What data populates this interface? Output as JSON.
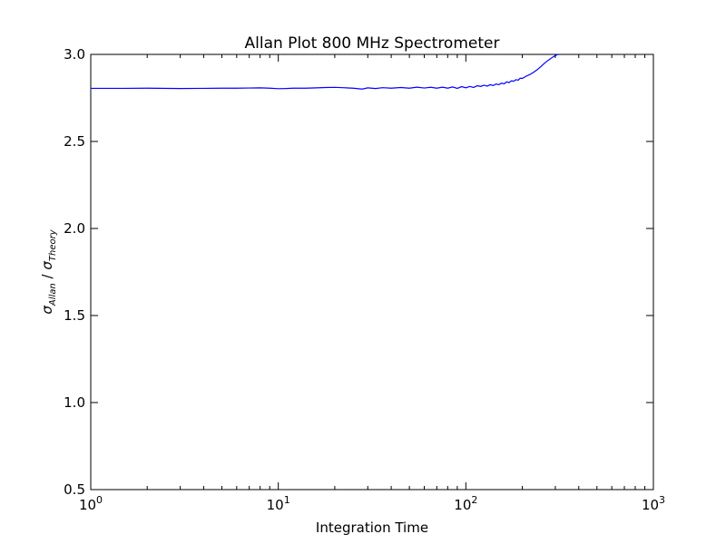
{
  "chart_data": {
    "type": "line",
    "title": "Allan Plot 800 MHz Spectrometer",
    "xlabel": "Integration Time",
    "ylabel": "σ_Allan / σ_Theory",
    "ylabel_main": "σ",
    "ylabel_num_sub": "Allan",
    "ylabel_slash": " / ",
    "ylabel_den_sub": "Theory",
    "xscale": "log",
    "xlim": [
      1,
      1000
    ],
    "ylim": [
      0.5,
      3.0
    ],
    "grid": false,
    "x_ticks": [
      {
        "value": 1,
        "base": "10",
        "exp": "0"
      },
      {
        "value": 10,
        "base": "10",
        "exp": "1"
      },
      {
        "value": 100,
        "base": "10",
        "exp": "2"
      },
      {
        "value": 1000,
        "base": "10",
        "exp": "3"
      }
    ],
    "y_ticks": [
      {
        "value": 0.5,
        "label": "0.5"
      },
      {
        "value": 1.0,
        "label": "1.0"
      },
      {
        "value": 1.5,
        "label": "1.5"
      },
      {
        "value": 2.0,
        "label": "2.0"
      },
      {
        "value": 2.5,
        "label": "2.5"
      },
      {
        "value": 3.0,
        "label": "3.0"
      }
    ],
    "series": [
      {
        "color": "#0000ff",
        "x": [
          1,
          1.5,
          2,
          3,
          4,
          5,
          6,
          7,
          8,
          9,
          10,
          11,
          12,
          14,
          16,
          18,
          20,
          22,
          25,
          28,
          30,
          33,
          36,
          40,
          45,
          50,
          55,
          60,
          65,
          70,
          75,
          80,
          85,
          90,
          95,
          100,
          105,
          110,
          115,
          120,
          125,
          130,
          135,
          140,
          145,
          150,
          155,
          160,
          165,
          170,
          175,
          180,
          185,
          190,
          195,
          200,
          210,
          220,
          230,
          240,
          250,
          260,
          270,
          280,
          290,
          300,
          310,
          320
        ],
        "y": [
          2.805,
          2.805,
          2.806,
          2.804,
          2.805,
          2.806,
          2.806,
          2.807,
          2.808,
          2.806,
          2.803,
          2.804,
          2.806,
          2.806,
          2.808,
          2.81,
          2.811,
          2.809,
          2.806,
          2.801,
          2.808,
          2.804,
          2.809,
          2.806,
          2.81,
          2.806,
          2.812,
          2.807,
          2.811,
          2.806,
          2.812,
          2.806,
          2.813,
          2.805,
          2.815,
          2.808,
          2.816,
          2.81,
          2.82,
          2.816,
          2.823,
          2.818,
          2.826,
          2.821,
          2.83,
          2.826,
          2.835,
          2.831,
          2.842,
          2.838,
          2.848,
          2.846,
          2.855,
          2.852,
          2.863,
          2.862,
          2.875,
          2.885,
          2.898,
          2.912,
          2.928,
          2.945,
          2.96,
          2.972,
          2.984,
          2.993,
          3.0,
          3.0
        ]
      }
    ]
  }
}
